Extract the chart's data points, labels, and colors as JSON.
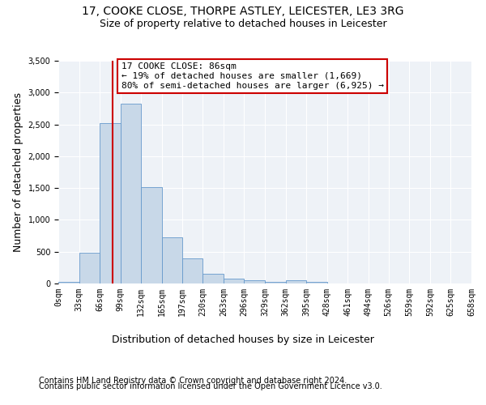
{
  "title1": "17, COOKE CLOSE, THORPE ASTLEY, LEICESTER, LE3 3RG",
  "title2": "Size of property relative to detached houses in Leicester",
  "xlabel": "Distribution of detached houses by size in Leicester",
  "ylabel": "Number of detached properties",
  "bar_heights": [
    20,
    480,
    2520,
    2830,
    1510,
    730,
    390,
    155,
    75,
    50,
    30,
    50,
    20,
    0,
    0,
    0,
    0,
    0,
    0,
    0
  ],
  "bin_edges": [
    0,
    33,
    66,
    99,
    132,
    165,
    197,
    230,
    263,
    296,
    329,
    362,
    395,
    428,
    461,
    494,
    526,
    559,
    592,
    625,
    658
  ],
  "bar_color": "#c8d8e8",
  "bar_edge_color": "#6699cc",
  "property_sqm": 86,
  "vline_color": "#cc0000",
  "annotation_text": "17 COOKE CLOSE: 86sqm\n← 19% of detached houses are smaller (1,669)\n80% of semi-detached houses are larger (6,925) →",
  "annotation_box_color": "#ffffff",
  "annotation_box_edge_color": "#cc0000",
  "ylim": [
    0,
    3500
  ],
  "yticks": [
    0,
    500,
    1000,
    1500,
    2000,
    2500,
    3000,
    3500
  ],
  "tick_labels": [
    "0sqm",
    "33sqm",
    "66sqm",
    "99sqm",
    "132sqm",
    "165sqm",
    "197sqm",
    "230sqm",
    "263sqm",
    "296sqm",
    "329sqm",
    "362sqm",
    "395sqm",
    "428sqm",
    "461sqm",
    "494sqm",
    "526sqm",
    "559sqm",
    "592sqm",
    "625sqm",
    "658sqm"
  ],
  "footer1": "Contains HM Land Registry data © Crown copyright and database right 2024.",
  "footer2": "Contains public sector information licensed under the Open Government Licence v3.0.",
  "bg_color": "#eef2f7",
  "title1_fontsize": 10,
  "title2_fontsize": 9,
  "axis_label_fontsize": 9,
  "tick_fontsize": 7,
  "footer_fontsize": 7,
  "annotation_fontsize": 8
}
